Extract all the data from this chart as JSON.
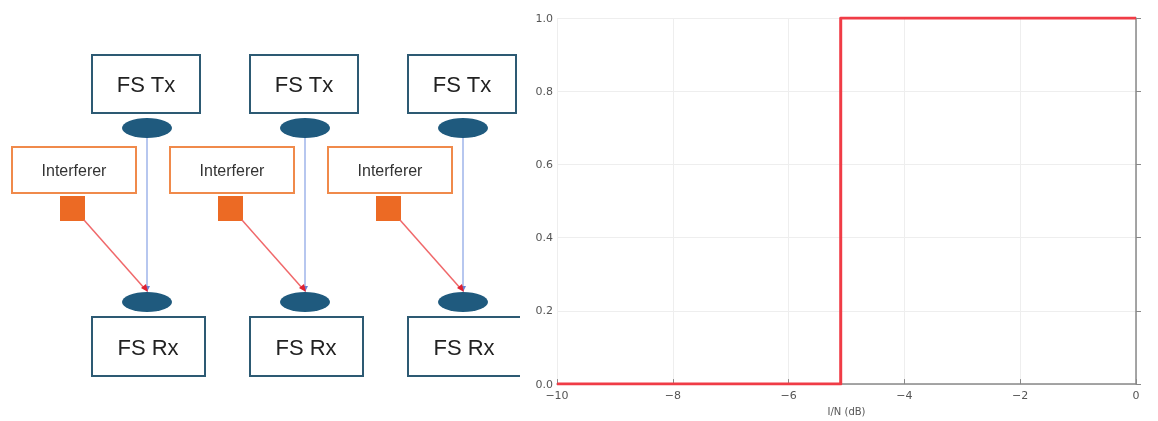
{
  "chart_data": [
    {
      "type": "other",
      "annotations": [
        "FS Tx",
        "FS Tx",
        "FS Tx",
        "Interferer",
        "Interferer",
        "Interferer",
        "FS Rx",
        "FS Rx",
        "FS Rx"
      ]
    },
    {
      "type": "step",
      "xlabel": "I/N (dB)",
      "x": [
        -10,
        -5.1,
        0
      ],
      "values": [
        0,
        1,
        1
      ],
      "color": "#f03c46",
      "xlim": [
        -10,
        0
      ],
      "xticks": [
        {
          "value": -10,
          "label": "−10"
        },
        {
          "value": -8,
          "label": "−8"
        },
        {
          "value": -6,
          "label": "−6"
        },
        {
          "value": -4,
          "label": "−4"
        },
        {
          "value": -2,
          "label": "−2"
        },
        0
      ],
      "ylim": [
        0,
        1
      ],
      "yticks": [
        {
          "value": 0,
          "label": "0.0"
        },
        {
          "value": 0.2,
          "label": "0.2"
        },
        {
          "value": 0.4,
          "label": "0.4"
        },
        {
          "value": 0.6,
          "label": "0.6"
        },
        {
          "value": 0.8,
          "label": "0.8"
        },
        {
          "value": 1,
          "label": "1.0"
        }
      ],
      "grid": true,
      "marker": "none",
      "line_style": "solid"
    }
  ]
}
